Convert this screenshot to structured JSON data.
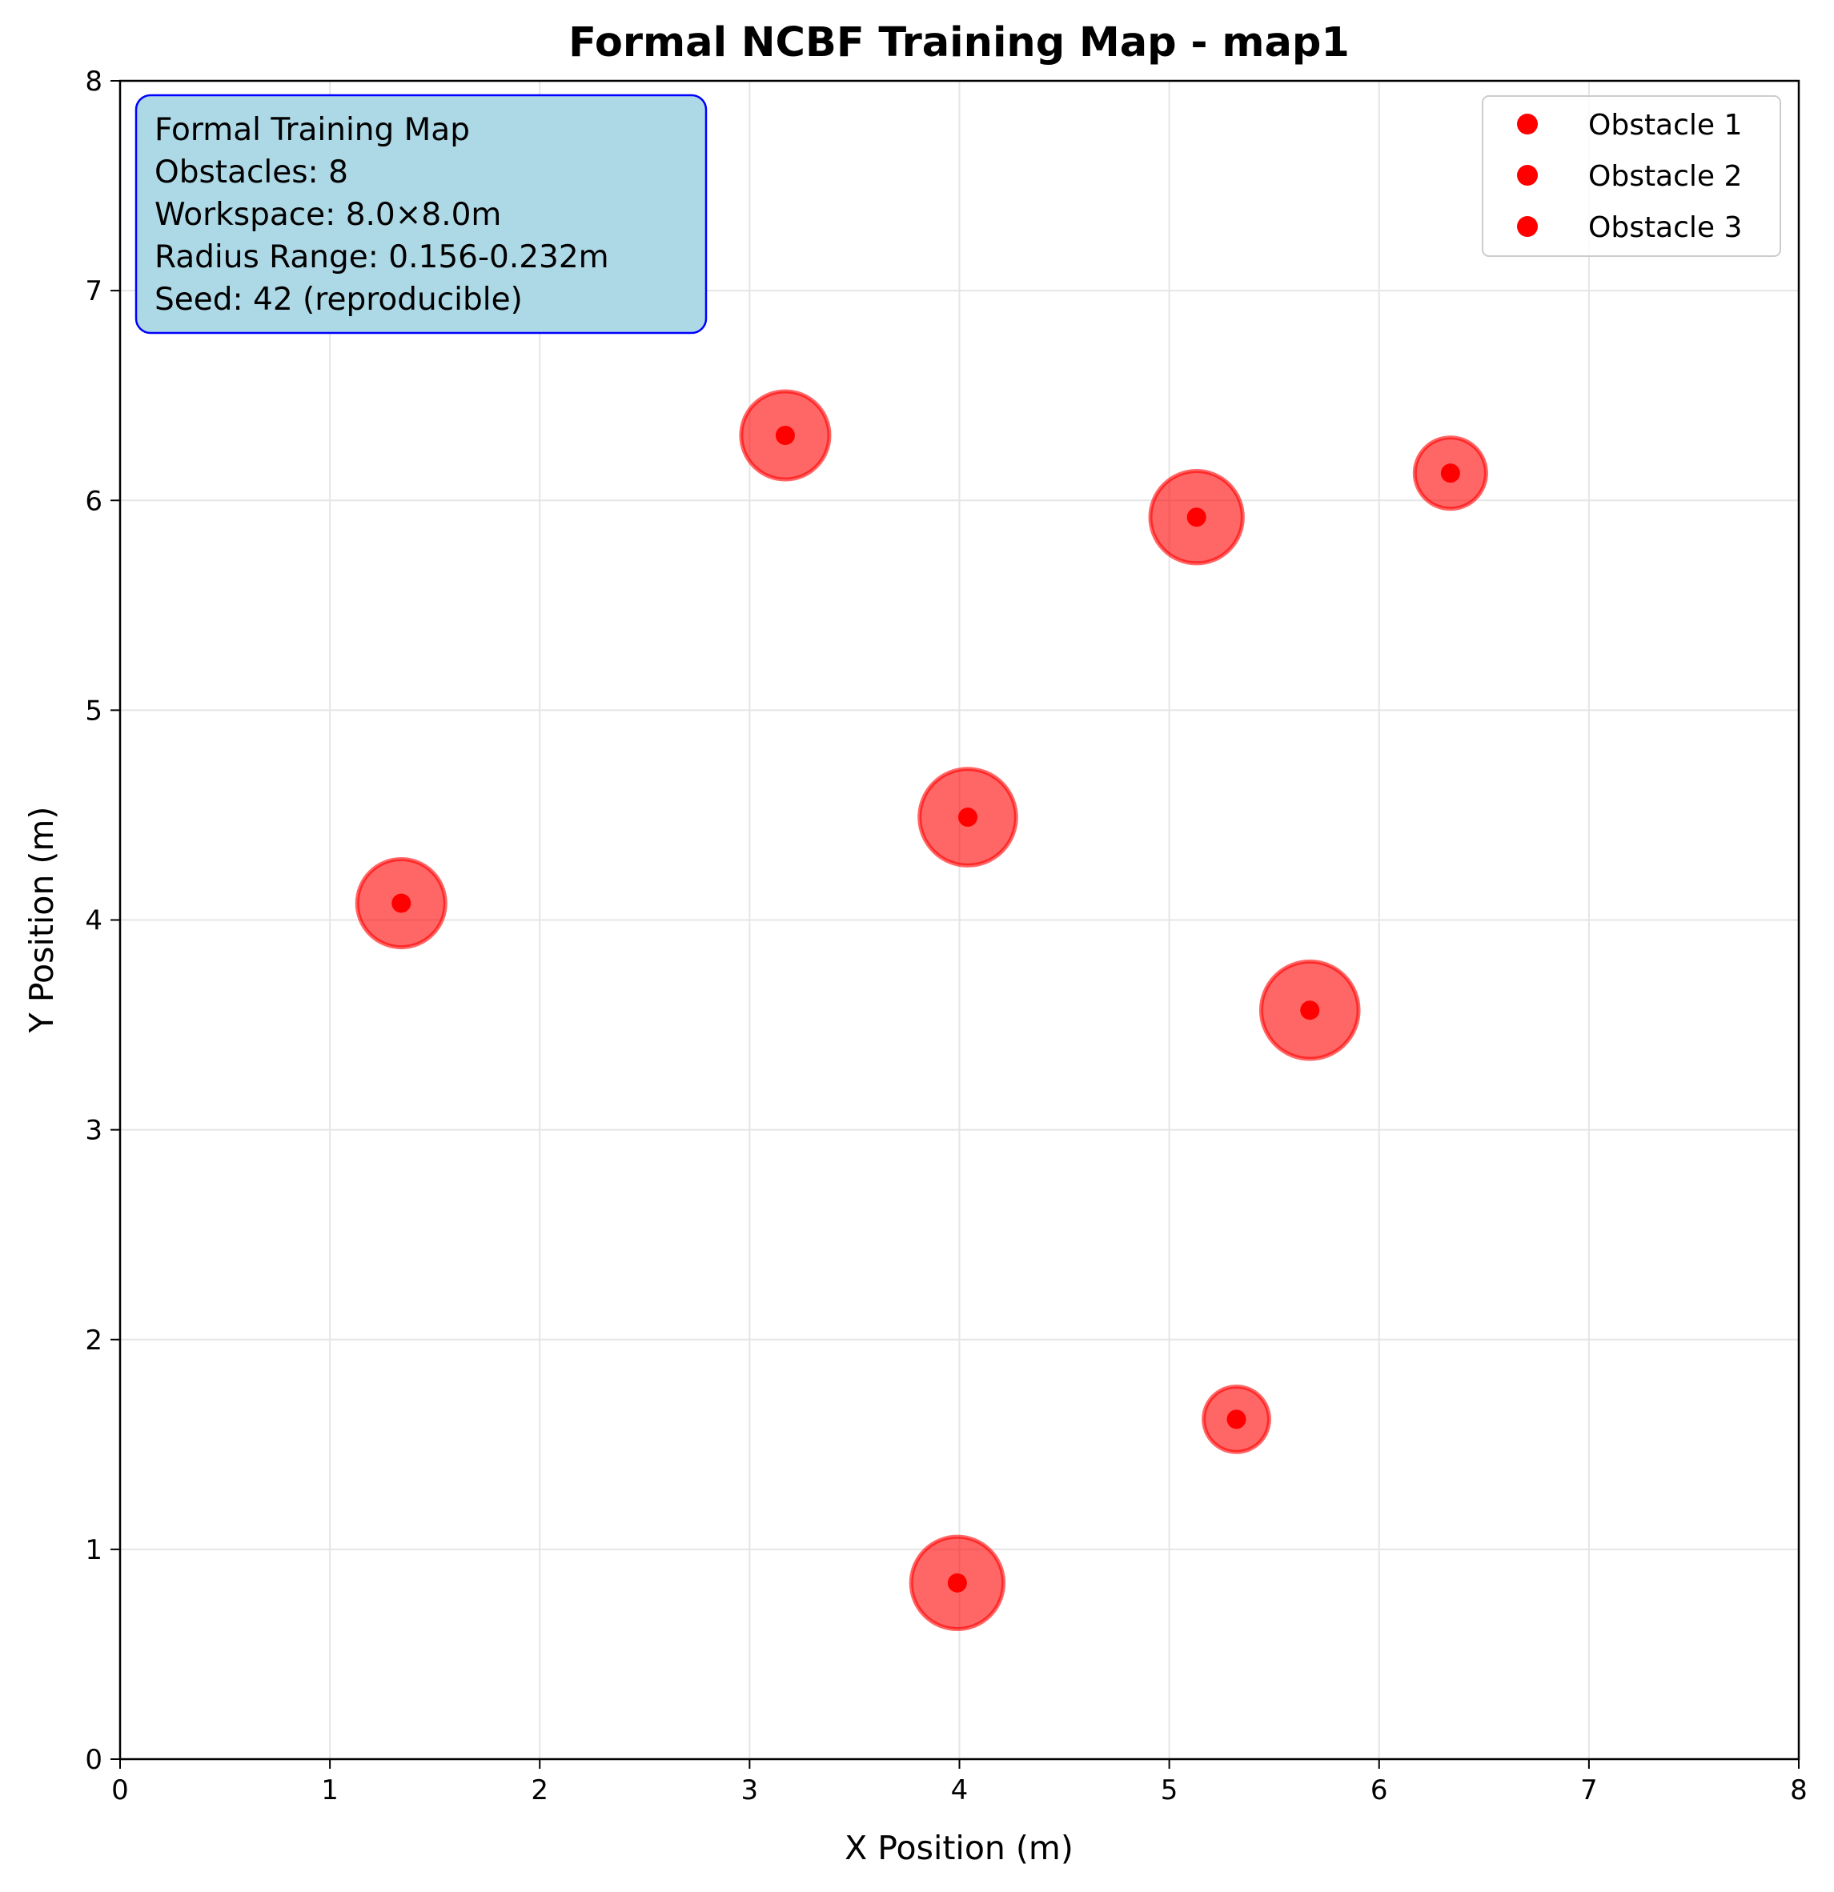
{
  "chart_data": {
    "type": "scatter",
    "title": "Formal NCBF Training Map - map1",
    "xlabel": "X Position (m)",
    "ylabel": "Y Position (m)",
    "xlim": [
      0,
      8
    ],
    "ylim": [
      0,
      8
    ],
    "xticks": [
      "0",
      "1",
      "2",
      "3",
      "4",
      "5",
      "6",
      "7",
      "8"
    ],
    "yticks": [
      "0",
      "1",
      "2",
      "3",
      "4",
      "5",
      "6",
      "7",
      "8"
    ],
    "grid": true,
    "legend_position": "top-right",
    "legend": [
      "Obstacle 1",
      "Obstacle 2",
      "Obstacle 3"
    ],
    "info_box": [
      "Formal Training Map",
      "Obstacles: 8",
      "Workspace: 8.0×8.0m",
      "Radius Range: 0.156-0.232m",
      "Seed: 42 (reproducible)"
    ],
    "obstacles": [
      {
        "x": 1.34,
        "y": 4.08,
        "r": 0.21
      },
      {
        "x": 3.17,
        "y": 6.31,
        "r": 0.21
      },
      {
        "x": 4.04,
        "y": 4.49,
        "r": 0.23
      },
      {
        "x": 5.13,
        "y": 5.92,
        "r": 0.22
      },
      {
        "x": 6.34,
        "y": 6.13,
        "r": 0.17
      },
      {
        "x": 5.67,
        "y": 3.57,
        "r": 0.232
      },
      {
        "x": 5.32,
        "y": 1.62,
        "r": 0.156
      },
      {
        "x": 3.99,
        "y": 0.84,
        "r": 0.22
      }
    ],
    "colors": {
      "obstacle_fill": "#ff0000",
      "obstacle_fill_opacity": 0.6,
      "center_marker": "#ff0000",
      "info_box_bg": "#add8e6",
      "info_box_border": "#0000ff",
      "grid": "#e5e5e5"
    }
  }
}
